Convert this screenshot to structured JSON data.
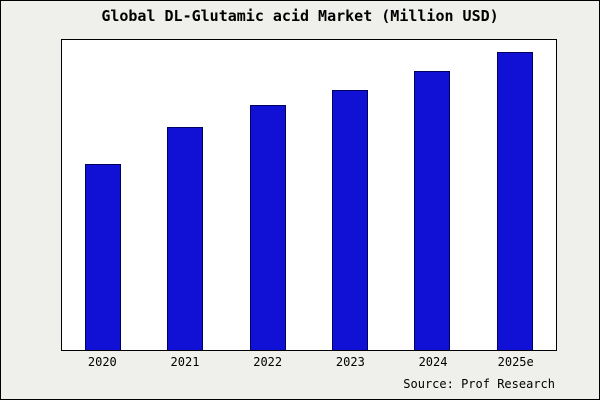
{
  "chart_data": {
    "type": "bar",
    "title": "Global DL-Glutamic acid Market (Million USD)",
    "categories": [
      "2020",
      "2021",
      "2022",
      "2023",
      "2024",
      "2025e"
    ],
    "values": [
      60,
      72,
      79,
      84,
      90,
      96
    ],
    "ylim": [
      0,
      100
    ],
    "xlabel": "",
    "ylabel": "",
    "grid": false,
    "legend": false,
    "bar_color": "#1111d6",
    "source": "Source: Prof Research"
  }
}
